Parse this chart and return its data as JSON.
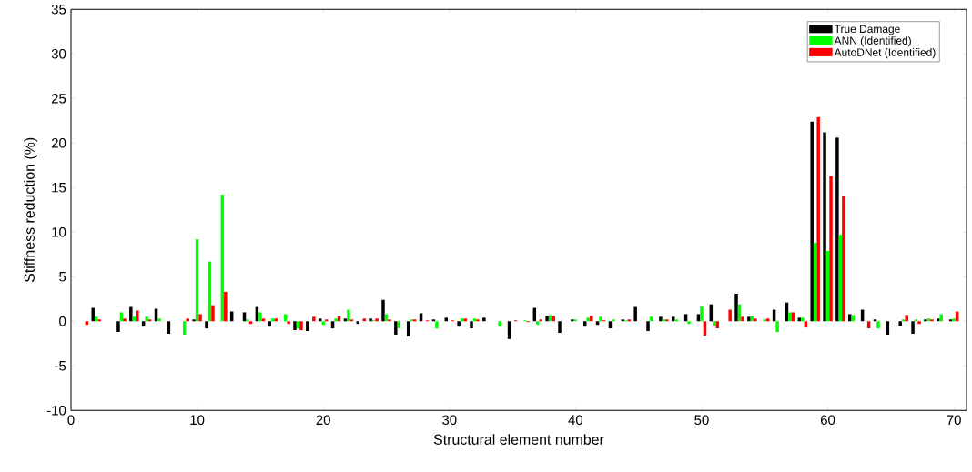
{
  "chart_data": {
    "type": "bar",
    "xlabel": "Structural element number",
    "ylabel": "Stiffness reduction (%)",
    "x": [
      1,
      2,
      3,
      4,
      5,
      6,
      7,
      8,
      9,
      10,
      11,
      12,
      13,
      14,
      15,
      16,
      17,
      18,
      19,
      20,
      21,
      22,
      23,
      24,
      25,
      26,
      27,
      28,
      29,
      30,
      31,
      32,
      33,
      34,
      35,
      36,
      37,
      38,
      39,
      40,
      41,
      42,
      43,
      44,
      45,
      46,
      47,
      48,
      49,
      50,
      51,
      52,
      53,
      54,
      55,
      56,
      57,
      58,
      59,
      60,
      61,
      62,
      63,
      64,
      65,
      66,
      67,
      68,
      69,
      70
    ],
    "series": [
      {
        "name": "True Damage",
        "color": "#000000",
        "values": [
          0,
          1.5,
          0,
          -1.2,
          1.6,
          -0.6,
          1.4,
          -1.4,
          0,
          0.2,
          -0.8,
          0,
          1.1,
          1.0,
          1.6,
          -0.6,
          0,
          -1.0,
          -1.1,
          0.3,
          -0.8,
          0.3,
          -0.3,
          0.3,
          2.4,
          -1.5,
          -1.7,
          0.9,
          0.2,
          0.4,
          -0.6,
          -0.8,
          0.4,
          0,
          -2.0,
          0,
          1.5,
          0.6,
          -1.3,
          0.2,
          -0.6,
          -0.4,
          -0.8,
          0.2,
          1.6,
          -1.1,
          0.5,
          0.5,
          0.8,
          0.8,
          1.9,
          0,
          3.1,
          0.5,
          0,
          1.3,
          2.1,
          0.4,
          22.4,
          21.2,
          20.6,
          0.8,
          1.3,
          0.2,
          -1.5,
          -0.5,
          -1.4,
          0.2,
          0.3,
          0.2
        ]
      },
      {
        "name": "ANN (Identified)",
        "color": "#00ff00",
        "values": [
          0,
          0.5,
          0,
          1.0,
          0.5,
          0.5,
          0.3,
          0,
          -1.5,
          9.2,
          6.7,
          14.2,
          0,
          0.2,
          1.0,
          0.3,
          0.8,
          -0.8,
          0,
          -0.4,
          0.3,
          1.3,
          0,
          0.1,
          0.8,
          -0.8,
          0.2,
          0,
          -0.8,
          0,
          0.3,
          0.3,
          0,
          -0.6,
          0,
          0.1,
          -0.4,
          0.7,
          0,
          0.2,
          0.4,
          0.5,
          0.2,
          0.1,
          0,
          0.5,
          0.2,
          0.2,
          -0.3,
          1.7,
          -0.5,
          0,
          1.9,
          0.6,
          0.2,
          -1.2,
          1.0,
          0.4,
          8.8,
          7.9,
          9.7,
          0.7,
          0,
          -0.8,
          0,
          0.2,
          0.2,
          0.3,
          0.8,
          0.3
        ]
      },
      {
        "name": "AutoDNet (Identified)",
        "color": "#ff0000",
        "values": [
          -0.4,
          0.2,
          0,
          0.3,
          1.2,
          0.2,
          0,
          0,
          0.3,
          0.8,
          1.8,
          3.3,
          0,
          -0.3,
          0.3,
          0.3,
          -0.3,
          -1.0,
          0.5,
          0.2,
          0.6,
          0.2,
          0.3,
          0.3,
          0.2,
          0,
          0.2,
          0.1,
          0,
          0.1,
          0.3,
          0.2,
          0,
          0,
          0.1,
          -0.1,
          0.2,
          0.6,
          0,
          0,
          0.6,
          0.1,
          0,
          0.2,
          0,
          0,
          0.2,
          0,
          0,
          -1.6,
          -0.8,
          1.3,
          0.5,
          0.3,
          0.3,
          0,
          1.0,
          -0.7,
          22.9,
          16.3,
          14.0,
          0,
          -0.8,
          0,
          0,
          0.7,
          -0.3,
          0.2,
          0,
          1.1
        ]
      }
    ],
    "xlim": [
      0,
      71
    ],
    "xticks": [
      0,
      10,
      20,
      30,
      40,
      50,
      60,
      70
    ],
    "ylim": [
      -10,
      35
    ],
    "yticks": [
      -10,
      -5,
      0,
      5,
      10,
      15,
      20,
      25,
      30,
      35
    ],
    "legend": "top right",
    "grid": false
  }
}
